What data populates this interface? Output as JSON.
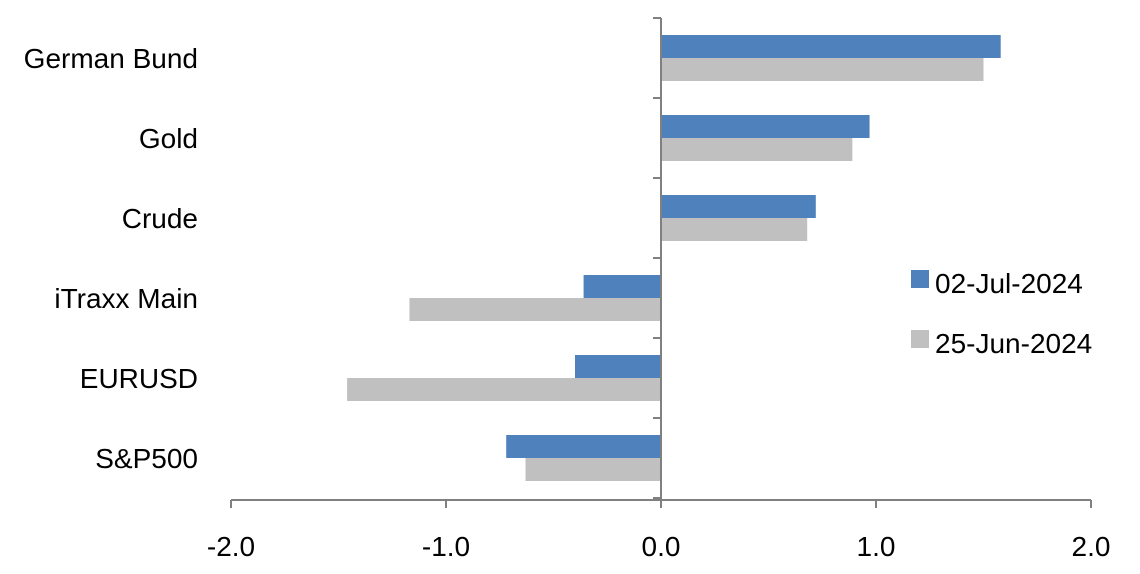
{
  "chart_data": {
    "type": "bar",
    "orientation": "horizontal",
    "categories": [
      "German Bund",
      "Gold",
      "Crude",
      "iTraxx Main",
      "EURUSD",
      "S&P500"
    ],
    "series": [
      {
        "name": "02-Jul-2024",
        "color": "#4F81BD",
        "values": [
          1.58,
          0.97,
          0.72,
          -0.36,
          -0.4,
          -0.72
        ]
      },
      {
        "name": "25-Jun-2024",
        "color": "#C0C0C0",
        "values": [
          1.5,
          0.89,
          0.68,
          -1.17,
          -1.46,
          -0.63
        ]
      }
    ],
    "xlim": [
      -2.0,
      2.0
    ],
    "xticks": [
      "-2.0",
      "-1.0",
      "0.0",
      "1.0",
      "2.0"
    ],
    "grid": false,
    "legend_position": "right",
    "axis_color": "#808080"
  }
}
